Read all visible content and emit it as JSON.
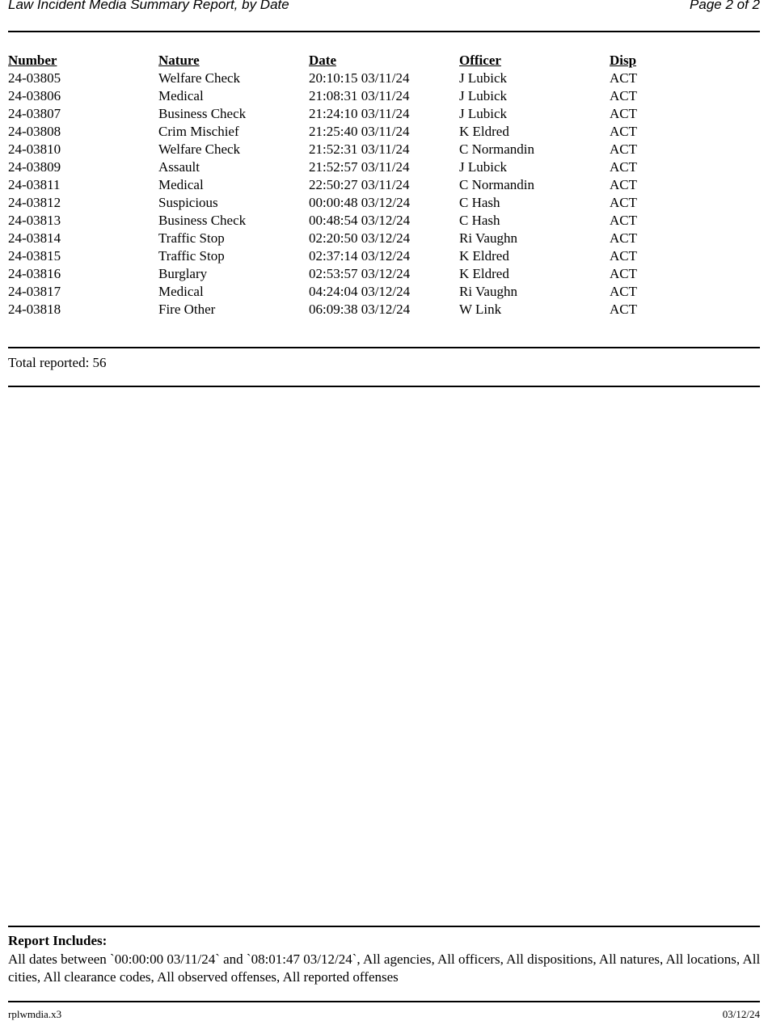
{
  "header": {
    "title": "Law Incident Media Summary Report, by Date",
    "page": "Page 2 of 2"
  },
  "table": {
    "columns": [
      "Number",
      "Nature",
      "Date",
      "Officer",
      "Disp"
    ],
    "rows": [
      [
        "24-03805",
        "Welfare Check",
        "20:10:15 03/11/24",
        "J Lubick",
        "ACT"
      ],
      [
        "24-03806",
        "Medical",
        "21:08:31 03/11/24",
        "J Lubick",
        "ACT"
      ],
      [
        "24-03807",
        "Business Check",
        "21:24:10 03/11/24",
        "J Lubick",
        "ACT"
      ],
      [
        "24-03808",
        "Crim Mischief",
        "21:25:40 03/11/24",
        "K Eldred",
        "ACT"
      ],
      [
        "24-03810",
        "Welfare Check",
        "21:52:31 03/11/24",
        "C Normandin",
        "ACT"
      ],
      [
        "24-03809",
        "Assault",
        "21:52:57 03/11/24",
        "J Lubick",
        "ACT"
      ],
      [
        "24-03811",
        "Medical",
        "22:50:27 03/11/24",
        "C Normandin",
        "ACT"
      ],
      [
        "24-03812",
        "Suspicious",
        "00:00:48 03/12/24",
        "C Hash",
        "ACT"
      ],
      [
        "24-03813",
        "Business Check",
        "00:48:54 03/12/24",
        "C Hash",
        "ACT"
      ],
      [
        "24-03814",
        "Traffic Stop",
        "02:20:50 03/12/24",
        "Ri Vaughn",
        "ACT"
      ],
      [
        "24-03815",
        "Traffic Stop",
        "02:37:14 03/12/24",
        "K Eldred",
        "ACT"
      ],
      [
        "24-03816",
        "Burglary",
        "02:53:57 03/12/24",
        "K Eldred",
        "ACT"
      ],
      [
        "24-03817",
        "Medical",
        "04:24:04 03/12/24",
        "Ri Vaughn",
        "ACT"
      ],
      [
        "24-03818",
        "Fire Other",
        "06:09:38 03/12/24",
        "W Link",
        "ACT"
      ]
    ]
  },
  "total": "Total reported: 56",
  "includes": {
    "heading": "Report Includes:",
    "text": "All dates between `00:00:00 03/11/24` and `08:01:47 03/12/24`, All agencies, All officers, All dispositions, All natures, All locations, All cities, All clearance codes, All observed offenses, All reported offenses"
  },
  "footer": {
    "left": "rplwmdia.x3",
    "right": "03/12/24"
  }
}
